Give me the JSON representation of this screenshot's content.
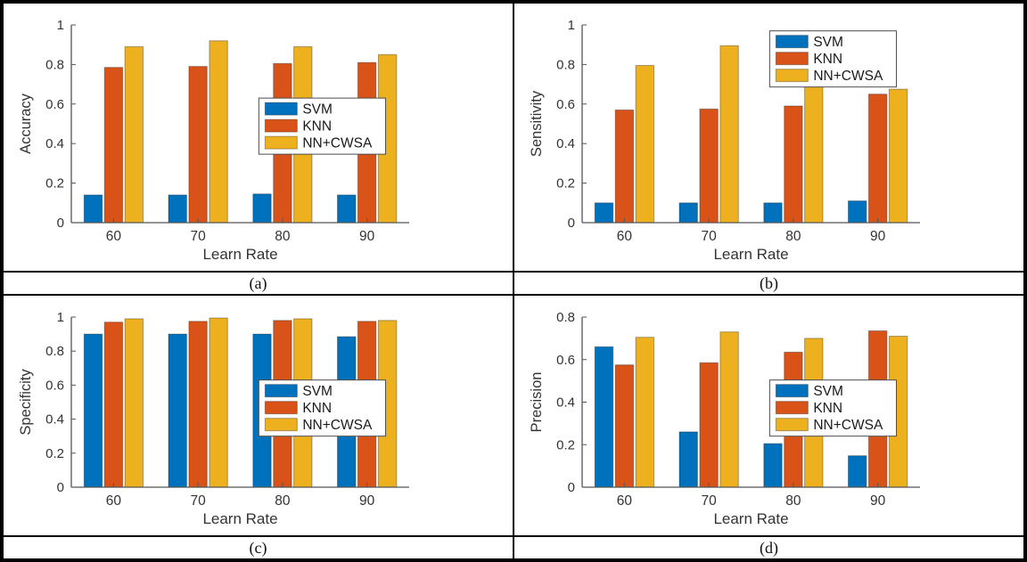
{
  "figure": {
    "background": "#ffffff",
    "panel_border_color": "#000000"
  },
  "colors": {
    "axis": "#555555",
    "text": "#333333",
    "legend_border": "#4d4d4d",
    "legend_background": "#ffffff",
    "svm": "#0072BD",
    "knn": "#D95319",
    "nn_cwsa": "#EDB120"
  },
  "chart_data": [
    {
      "type": "bar",
      "caption": "(a)",
      "title": "",
      "xlabel": "Learn Rate",
      "ylabel": "Accuracy",
      "ylim": [
        0,
        1
      ],
      "yticks": [
        0,
        0.2,
        0.4,
        0.6,
        0.8,
        1
      ],
      "categories": [
        "60",
        "70",
        "80",
        "90"
      ],
      "series": [
        {
          "name": "SVM",
          "color": "#0072BD",
          "values": [
            0.14,
            0.14,
            0.145,
            0.14
          ]
        },
        {
          "name": "KNN",
          "color": "#D95319",
          "values": [
            0.785,
            0.79,
            0.805,
            0.81
          ]
        },
        {
          "name": "NN+CWSA",
          "color": "#EDB120",
          "values": [
            0.89,
            0.92,
            0.89,
            0.85
          ]
        }
      ],
      "grid": false,
      "legend": {
        "position": "center-right",
        "entries": [
          "SVM",
          "KNN",
          "NN+CWSA"
        ]
      }
    },
    {
      "type": "bar",
      "caption": "(b)",
      "title": "",
      "xlabel": "Learn Rate",
      "ylabel": "Sensitivity",
      "ylim": [
        0,
        1
      ],
      "yticks": [
        0,
        0.2,
        0.4,
        0.6,
        0.8,
        1
      ],
      "categories": [
        "60",
        "70",
        "80",
        "90"
      ],
      "series": [
        {
          "name": "SVM",
          "color": "#0072BD",
          "values": [
            0.1,
            0.1,
            0.1,
            0.11
          ]
        },
        {
          "name": "KNN",
          "color": "#D95319",
          "values": [
            0.57,
            0.575,
            0.59,
            0.65
          ]
        },
        {
          "name": "NN+CWSA",
          "color": "#EDB120",
          "values": [
            0.795,
            0.895,
            0.7,
            0.675
          ]
        }
      ],
      "grid": false,
      "legend": {
        "position": "top-right",
        "entries": [
          "SVM",
          "KNN",
          "NN+CWSA"
        ]
      }
    },
    {
      "type": "bar",
      "caption": "(c)",
      "title": "",
      "xlabel": "Learn Rate",
      "ylabel": "Specificity",
      "ylim": [
        0,
        1
      ],
      "yticks": [
        0,
        0.2,
        0.4,
        0.6,
        0.8,
        1
      ],
      "categories": [
        "60",
        "70",
        "80",
        "90"
      ],
      "series": [
        {
          "name": "SVM",
          "color": "#0072BD",
          "values": [
            0.9,
            0.9,
            0.9,
            0.885
          ]
        },
        {
          "name": "KNN",
          "color": "#D95319",
          "values": [
            0.97,
            0.975,
            0.98,
            0.975
          ]
        },
        {
          "name": "NN+CWSA",
          "color": "#EDB120",
          "values": [
            0.99,
            0.995,
            0.99,
            0.98
          ]
        }
      ],
      "grid": false,
      "legend": {
        "position": "center-right",
        "entries": [
          "SVM",
          "KNN",
          "NN+CWSA"
        ]
      }
    },
    {
      "type": "bar",
      "caption": "(d)",
      "title": "",
      "xlabel": "Learn Rate",
      "ylabel": "Precision",
      "ylim": [
        0,
        0.8
      ],
      "yticks": [
        0,
        0.2,
        0.4,
        0.6,
        0.8
      ],
      "categories": [
        "60",
        "70",
        "80",
        "90"
      ],
      "series": [
        {
          "name": "SVM",
          "color": "#0072BD",
          "values": [
            0.66,
            0.26,
            0.205,
            0.148
          ]
        },
        {
          "name": "KNN",
          "color": "#D95319",
          "values": [
            0.575,
            0.585,
            0.635,
            0.735
          ]
        },
        {
          "name": "NN+CWSA",
          "color": "#EDB120",
          "values": [
            0.705,
            0.73,
            0.7,
            0.71
          ]
        }
      ],
      "grid": false,
      "legend": {
        "position": "center-right",
        "entries": [
          "SVM",
          "KNN",
          "NN+CWSA"
        ]
      }
    }
  ]
}
